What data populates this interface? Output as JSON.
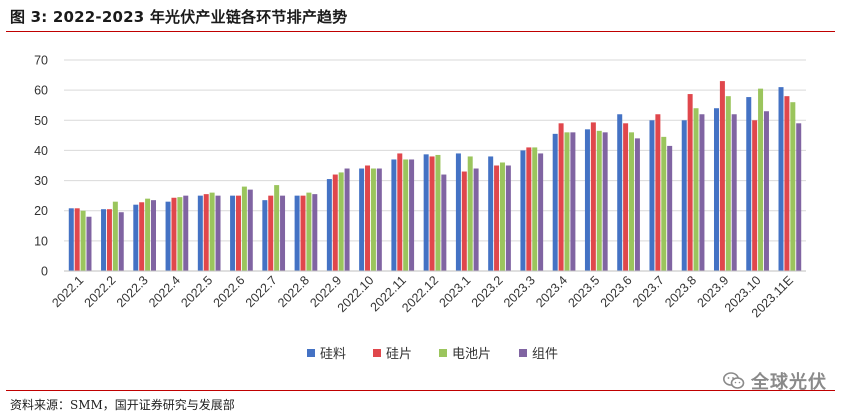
{
  "figure": {
    "title": "图 3:  2022-2023 年光伏产业链各环节排产趋势",
    "source": "资料来源：SMM，国开证券研究与发展部",
    "watermark": "全球光伏"
  },
  "colors": {
    "accent_rule": "#c00000",
    "gridline": "#d9d9d9",
    "axis": "#bfbfbf"
  },
  "chart_data": {
    "type": "bar",
    "categories": [
      "2022.1",
      "2022.2",
      "2022.3",
      "2022.4",
      "2022.5",
      "2022.6",
      "2022.7",
      "2022.8",
      "2022.9",
      "2022.10",
      "2022.11",
      "2022.12",
      "2023.1",
      "2023.2",
      "2023.3",
      "2023.4",
      "2023.5",
      "2023.6",
      "2023.7",
      "2023.8",
      "2023.9",
      "2023.10",
      "2023.11E"
    ],
    "series": [
      {
        "name": "硅料",
        "color": "#4472c4",
        "values": [
          20.8,
          20.5,
          22,
          23,
          25,
          25,
          23.5,
          25,
          30.5,
          34,
          37,
          38.7,
          39,
          38,
          40,
          45.5,
          47,
          52,
          50,
          50,
          54,
          57.7,
          61
        ]
      },
      {
        "name": "硅片",
        "color": "#e0474c",
        "values": [
          20.8,
          20.5,
          22.8,
          24.3,
          25.5,
          25,
          25,
          25,
          32,
          35,
          39,
          38,
          33,
          35,
          41,
          49,
          49.3,
          49,
          52,
          58.7,
          63,
          50,
          58
        ]
      },
      {
        "name": "电池片",
        "color": "#9bc55d",
        "values": [
          20,
          23,
          24,
          24.5,
          26,
          28,
          28.5,
          26,
          32.7,
          34,
          37,
          38.5,
          38,
          36,
          41,
          46,
          46.5,
          46,
          44.5,
          54,
          58,
          60.5,
          56
        ]
      },
      {
        "name": "组件",
        "color": "#8064a2",
        "values": [
          18,
          19.5,
          23.5,
          25,
          25,
          27,
          25,
          25.5,
          34,
          34,
          37,
          32,
          34,
          35,
          39,
          46,
          46,
          44,
          41.5,
          52,
          52,
          53,
          49
        ]
      }
    ],
    "ylim": [
      0,
      70
    ],
    "yticks": [
      0,
      10,
      20,
      30,
      40,
      50,
      60,
      70
    ],
    "grid": true,
    "legend_position": "bottom"
  }
}
